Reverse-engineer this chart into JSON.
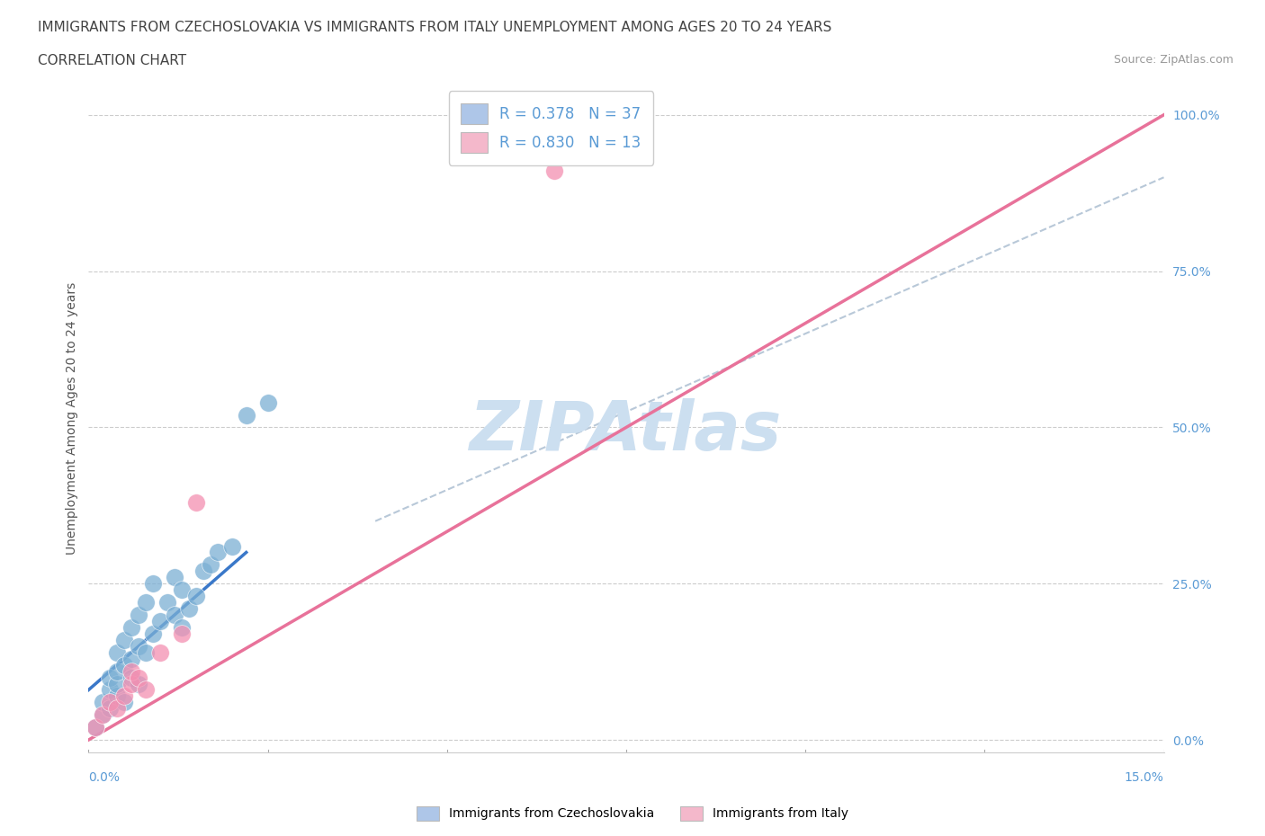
{
  "title_line1": "IMMIGRANTS FROM CZECHOSLOVAKIA VS IMMIGRANTS FROM ITALY UNEMPLOYMENT AMONG AGES 20 TO 24 YEARS",
  "title_line2": "CORRELATION CHART",
  "source_text": "Source: ZipAtlas.com",
  "xlabel_start": "0.0%",
  "xlabel_end": "15.0%",
  "ylabel": "Unemployment Among Ages 20 to 24 years",
  "ytick_labels": [
    "0.0%",
    "25.0%",
    "50.0%",
    "75.0%",
    "100.0%"
  ],
  "ytick_values": [
    0.0,
    0.25,
    0.5,
    0.75,
    1.0
  ],
  "xmin": 0.0,
  "xmax": 0.15,
  "ymin": -0.02,
  "ymax": 1.05,
  "watermark": "ZIPAtlas",
  "legend_entries": [
    {
      "label": "R = 0.378   N = 37",
      "color": "#aec6e8"
    },
    {
      "label": "R = 0.830   N = 13",
      "color": "#f4b8cb"
    }
  ],
  "legend_label_bottom": [
    "Immigrants from Czechoslovakia",
    "Immigrants from Italy"
  ],
  "legend_color_bottom": [
    "#aec6e8",
    "#f4b8cb"
  ],
  "blue_scatter_x": [
    0.001,
    0.002,
    0.002,
    0.003,
    0.003,
    0.003,
    0.004,
    0.004,
    0.004,
    0.004,
    0.005,
    0.005,
    0.005,
    0.006,
    0.006,
    0.006,
    0.007,
    0.007,
    0.007,
    0.008,
    0.008,
    0.009,
    0.009,
    0.01,
    0.011,
    0.012,
    0.012,
    0.013,
    0.013,
    0.014,
    0.015,
    0.016,
    0.017,
    0.018,
    0.02,
    0.022,
    0.025
  ],
  "blue_scatter_y": [
    0.02,
    0.04,
    0.06,
    0.05,
    0.08,
    0.1,
    0.07,
    0.09,
    0.11,
    0.14,
    0.06,
    0.12,
    0.16,
    0.1,
    0.13,
    0.18,
    0.09,
    0.15,
    0.2,
    0.14,
    0.22,
    0.17,
    0.25,
    0.19,
    0.22,
    0.2,
    0.26,
    0.18,
    0.24,
    0.21,
    0.23,
    0.27,
    0.28,
    0.3,
    0.31,
    0.52,
    0.54
  ],
  "pink_scatter_x": [
    0.001,
    0.002,
    0.003,
    0.004,
    0.005,
    0.006,
    0.006,
    0.007,
    0.008,
    0.01,
    0.013,
    0.015,
    0.065
  ],
  "pink_scatter_y": [
    0.02,
    0.04,
    0.06,
    0.05,
    0.07,
    0.09,
    0.11,
    0.1,
    0.08,
    0.14,
    0.17,
    0.38,
    0.91
  ],
  "blue_line_x": [
    0.0,
    0.022
  ],
  "blue_line_y": [
    0.08,
    0.3
  ],
  "pink_line_x": [
    0.0,
    0.15
  ],
  "pink_line_y": [
    0.0,
    1.0
  ],
  "gray_dash_line_x": [
    0.04,
    0.15
  ],
  "gray_dash_line_y": [
    0.35,
    0.9
  ],
  "blue_color": "#7bafd4",
  "pink_color": "#f48fb1",
  "blue_line_color": "#3a78c9",
  "pink_line_color": "#e8729a",
  "gray_line_color": "#b8c8d8",
  "title_color": "#444444",
  "tick_color": "#5b9bd5",
  "watermark_color": "#ccdff0",
  "title_fontsize": 11,
  "subtitle_fontsize": 11,
  "source_fontsize": 9,
  "ylabel_fontsize": 10,
  "tick_fontsize": 10,
  "legend_fontsize": 12
}
